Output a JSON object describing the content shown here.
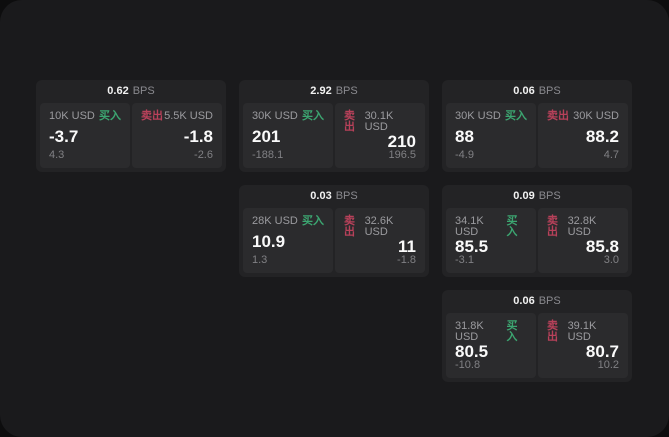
{
  "labels": {
    "bps_unit": "BPS",
    "buy": "买入",
    "sell": "卖出"
  },
  "colors": {
    "buy_green": "#3ca671",
    "sell_red": "#b8415a",
    "panel_bg": "#1a1a1c",
    "card_bg": "#232325",
    "side_bg": "#2b2b2d"
  },
  "cards": [
    {
      "bps": "0.62",
      "row": 1,
      "col": 1,
      "buy": {
        "amount": "10K USD",
        "price": "-3.7",
        "delta": "4.3"
      },
      "sell": {
        "amount": "5.5K USD",
        "price": "-1.8",
        "delta": "-2.6"
      }
    },
    {
      "bps": "2.92",
      "row": 1,
      "col": 2,
      "buy": {
        "amount": "30K USD",
        "price": "201",
        "delta": "-188.1"
      },
      "sell": {
        "amount": "30.1K USD",
        "price": "210",
        "delta": "196.5"
      }
    },
    {
      "bps": "0.06",
      "row": 1,
      "col": 3,
      "buy": {
        "amount": "30K USD",
        "price": "88",
        "delta": "-4.9"
      },
      "sell": {
        "amount": "30K USD",
        "price": "88.2",
        "delta": "4.7"
      }
    },
    {
      "bps": "0.03",
      "row": 2,
      "col": 2,
      "buy": {
        "amount": "28K USD",
        "price": "10.9",
        "delta": "1.3"
      },
      "sell": {
        "amount": "32.6K USD",
        "price": "11",
        "delta": "-1.8"
      }
    },
    {
      "bps": "0.09",
      "row": 2,
      "col": 3,
      "buy": {
        "amount": "34.1K USD",
        "price": "85.5",
        "delta": "-3.1"
      },
      "sell": {
        "amount": "32.8K USD",
        "price": "85.8",
        "delta": "3.0"
      }
    },
    {
      "bps": "0.06",
      "row": 3,
      "col": 3,
      "buy": {
        "amount": "31.8K USD",
        "price": "80.5",
        "delta": "-10.8"
      },
      "sell": {
        "amount": "39.1K USD",
        "price": "80.7",
        "delta": "10.2"
      }
    }
  ]
}
